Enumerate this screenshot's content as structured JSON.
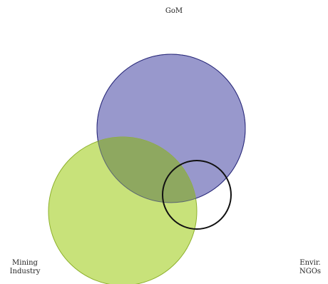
{
  "labels": {
    "gom": "GoM",
    "mining_line1": "Mining",
    "mining_line2": "Industry",
    "envir_line1": "Envir.",
    "envir_line2": "NGOs"
  },
  "colors": {
    "gom_fill": "#9898cc",
    "gom_stroke": "#2a2a7a",
    "mining_fill": "#c8e27a",
    "mining_stroke": "#8db02c",
    "overlap_fill": "#8ea860",
    "ngo_stroke": "#111111"
  }
}
